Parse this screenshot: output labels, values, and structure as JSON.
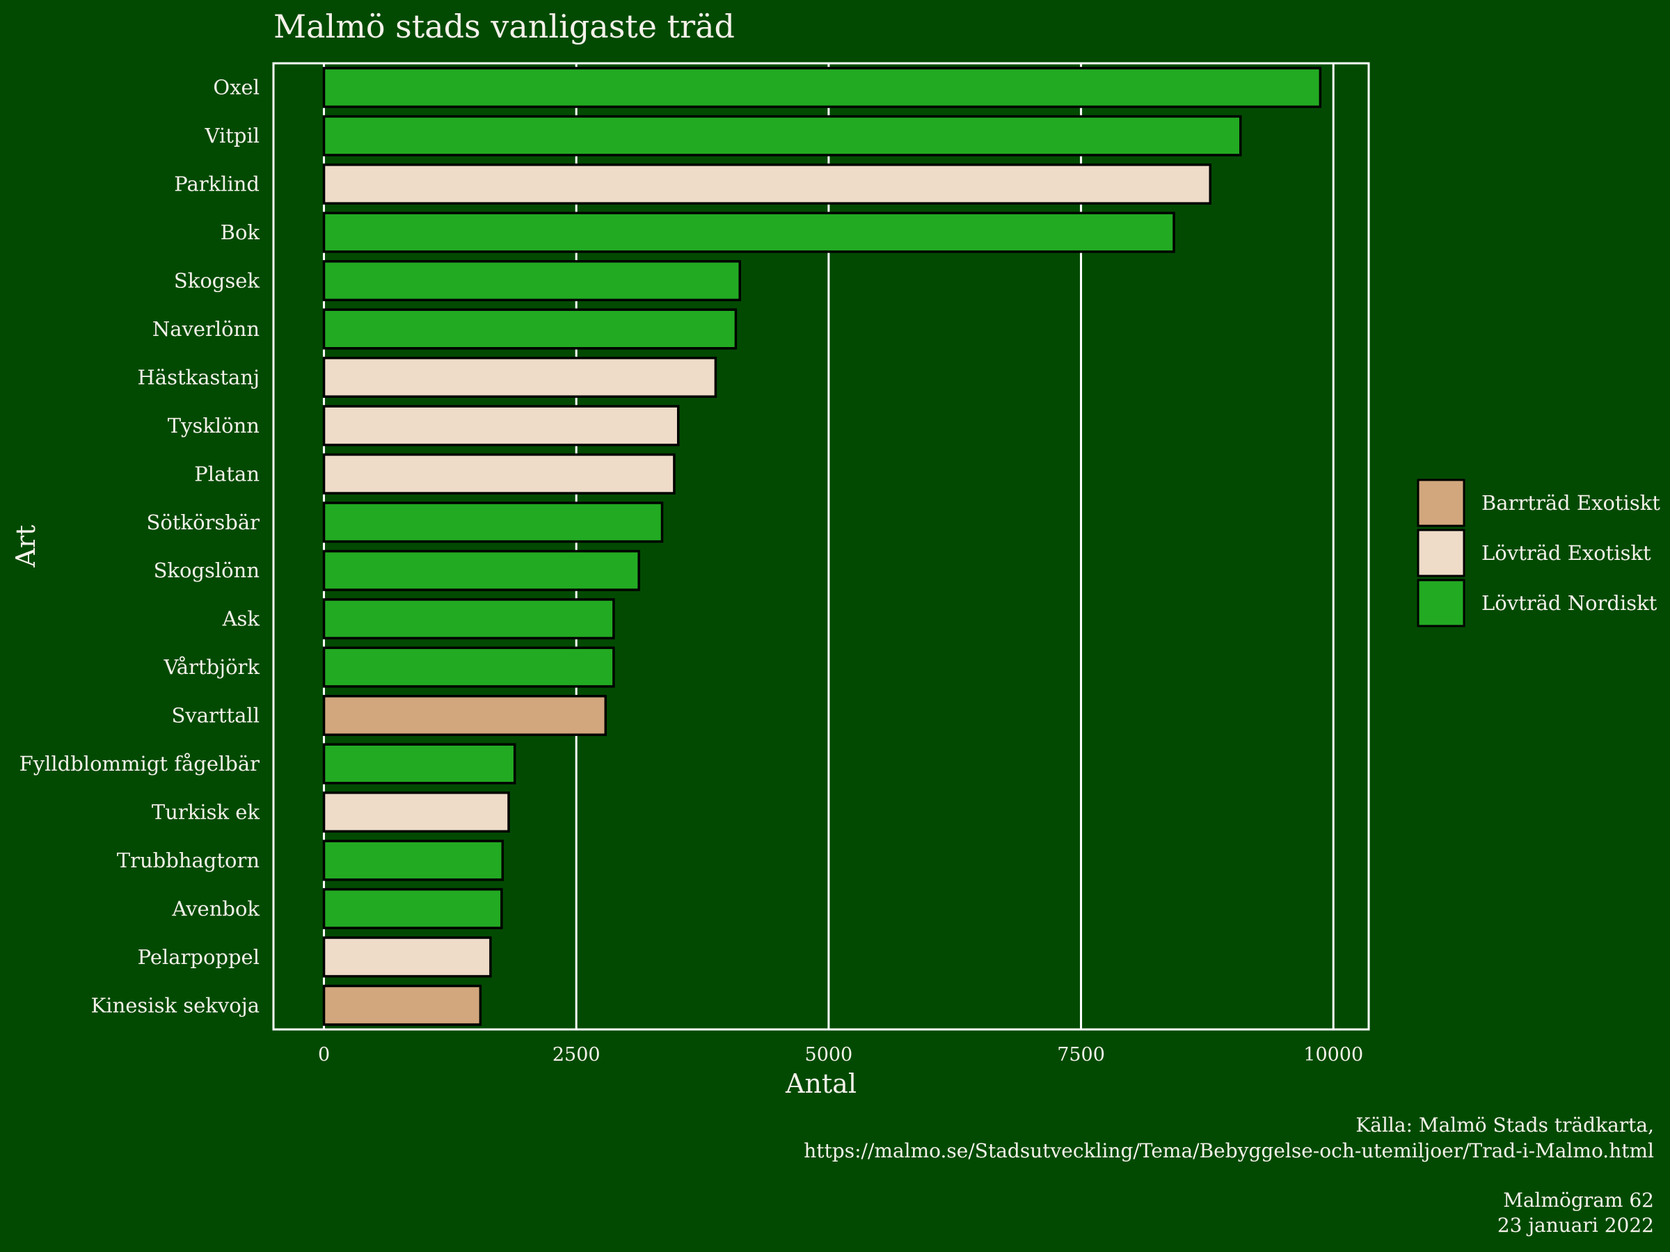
{
  "chart_data": {
    "type": "bar",
    "orientation": "horizontal",
    "title": "Malmö stads vanligaste träd",
    "xlabel": "Antal",
    "ylabel": "Art",
    "xlim": [
      -500,
      10350
    ],
    "xticks": [
      0,
      2500,
      5000,
      7500,
      10000
    ],
    "grid": "vertical major lines",
    "legend_position": "right",
    "categories": [
      "Oxel",
      "Vitpil",
      "Parklind",
      "Bok",
      "Skogsek",
      "Naverlönn",
      "Hästkastanj",
      "Tysklönn",
      "Platan",
      "Sötkörsbär",
      "Skogslönn",
      "Ask",
      "Vårtbjörk",
      "Svarttall",
      "Fylldblommigt fågelbär",
      "Turkisk ek",
      "Trubbhagtorn",
      "Avenbok",
      "Pelarpoppel",
      "Kinesisk sekvoja"
    ],
    "values": [
      9870,
      9080,
      8780,
      8420,
      4120,
      4080,
      3880,
      3510,
      3470,
      3350,
      3120,
      2870,
      2870,
      2790,
      1890,
      1830,
      1770,
      1760,
      1650,
      1550
    ],
    "groups": [
      "Lövträd Nordiskt",
      "Lövträd Nordiskt",
      "Lövträd Exotiskt",
      "Lövträd Nordiskt",
      "Lövträd Nordiskt",
      "Lövträd Nordiskt",
      "Lövträd Exotiskt",
      "Lövträd Exotiskt",
      "Lövträd Exotiskt",
      "Lövträd Nordiskt",
      "Lövträd Nordiskt",
      "Lövträd Nordiskt",
      "Lövträd Nordiskt",
      "Barrträd Exotiskt",
      "Lövträd Nordiskt",
      "Lövträd Exotiskt",
      "Lövträd Nordiskt",
      "Lövträd Nordiskt",
      "Lövträd Exotiskt",
      "Barrträd Exotiskt"
    ],
    "legend": [
      {
        "name": "Barrträd Exotiskt",
        "color": "#d2a77d"
      },
      {
        "name": "Lövträd Exotiskt",
        "color": "#eedbc8"
      },
      {
        "name": "Lövträd Nordiskt",
        "color": "#22aa22"
      }
    ],
    "colors": {
      "background": "#024a02",
      "text": "#f5f1ea",
      "grid": "#ffffff",
      "bar_outline": "#000000"
    }
  },
  "caption": {
    "source_line1": "Källa: Malmö Stads trädkarta,",
    "source_line2": "https://malmo.se/Stadsutveckling/Tema/Bebyggelse-och-utemiljoer/Trad-i-Malmo.html",
    "issue": "Malmögram 62",
    "date": "23 januari 2022"
  }
}
